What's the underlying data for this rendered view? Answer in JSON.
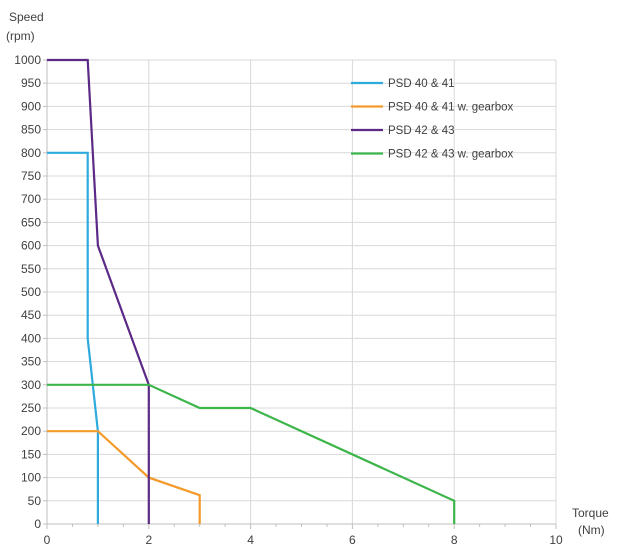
{
  "chart_data": {
    "type": "line",
    "ylabel_line1": "Speed",
    "ylabel_line2": "(rpm)",
    "xlabel_line1": "Torque",
    "xlabel_line2": "(Nm)",
    "xlim": [
      0,
      10
    ],
    "ylim": [
      0,
      1000
    ],
    "x_ticks": [
      0,
      2,
      4,
      6,
      8,
      10
    ],
    "y_ticks": [
      0,
      50,
      100,
      150,
      200,
      250,
      300,
      350,
      400,
      450,
      500,
      550,
      600,
      650,
      700,
      750,
      800,
      850,
      900,
      950,
      1000
    ],
    "grid": true,
    "legend_position": "top-right",
    "series": [
      {
        "name": "PSD 40 & 41",
        "color": "#2eaadc",
        "points": [
          [
            0,
            800
          ],
          [
            0.8,
            800
          ],
          [
            0.8,
            400
          ],
          [
            1.0,
            200
          ],
          [
            1.0,
            0
          ]
        ]
      },
      {
        "name": "PSD 40 & 41 w. gearbox",
        "color": "#f39a2b",
        "points": [
          [
            0,
            200
          ],
          [
            1.0,
            200
          ],
          [
            2.0,
            100
          ],
          [
            3.0,
            62
          ],
          [
            3.0,
            0
          ]
        ]
      },
      {
        "name": "PSD 42 & 43",
        "color": "#5b2a86",
        "points": [
          [
            0,
            1000
          ],
          [
            0.8,
            1000
          ],
          [
            1.0,
            600
          ],
          [
            2.0,
            300
          ],
          [
            2.0,
            0
          ]
        ]
      },
      {
        "name": "PSD 42 & 43 w. gearbox",
        "color": "#3cb54a",
        "points": [
          [
            0,
            300
          ],
          [
            2.0,
            300
          ],
          [
            3.0,
            250
          ],
          [
            4.0,
            250
          ],
          [
            8.0,
            50
          ],
          [
            8.0,
            0
          ]
        ]
      }
    ]
  }
}
